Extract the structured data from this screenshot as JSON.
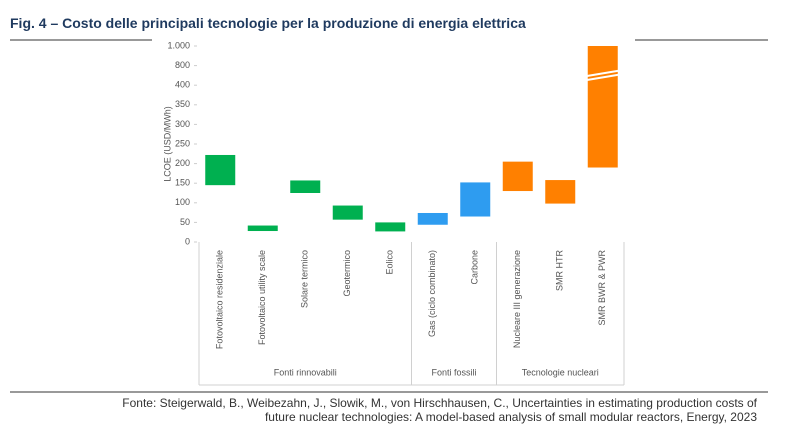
{
  "chart_data": {
    "type": "floating-bar",
    "title": "Fig. 4 – Costo delle principali tecnologie per la produzione di energia elettrica",
    "y_label": "LCOE (USD/MWh)",
    "ylim": [
      0,
      1000
    ],
    "yticks": [
      0,
      50,
      100,
      150,
      200,
      250,
      300,
      350,
      400,
      800,
      {
        "value": 1000,
        "label": "1.000"
      }
    ],
    "axis_break": [
      400,
      800
    ],
    "groups": [
      {
        "label": "Fonti rinnovabili",
        "color": "#00b050",
        "categories": [
          "Fotovoltaico residenziale",
          "Fotovoltaico utility scale",
          "Solare termico",
          "Geotermico",
          "Eolico"
        ],
        "low": [
          145,
          28,
          125,
          57,
          27
        ],
        "high": [
          222,
          42,
          157,
          93,
          50
        ]
      },
      {
        "label": "Fonti fossili",
        "color": "#2e9cf0",
        "categories": [
          "Gas (ciclo combinato)",
          "Carbone"
        ],
        "low": [
          44,
          65
        ],
        "high": [
          74,
          152
        ]
      },
      {
        "label": "Tecnologie nucleari",
        "color": "#ff8000",
        "categories": [
          "Nucleare III generazione",
          "SMR HTR",
          "SMR BWR & PWR"
        ],
        "low": [
          130,
          98,
          190
        ],
        "high": [
          205,
          158,
          1000
        ]
      }
    ],
    "source": [
      "Fonte: Steigerwald, B., Weibezahn, J., Slowik, M., von Hirschhausen, C., Uncertainties in estimating production costs of",
      "future nuclear technologies: A model-based analysis of small modular reactors, Energy, 2023"
    ]
  }
}
